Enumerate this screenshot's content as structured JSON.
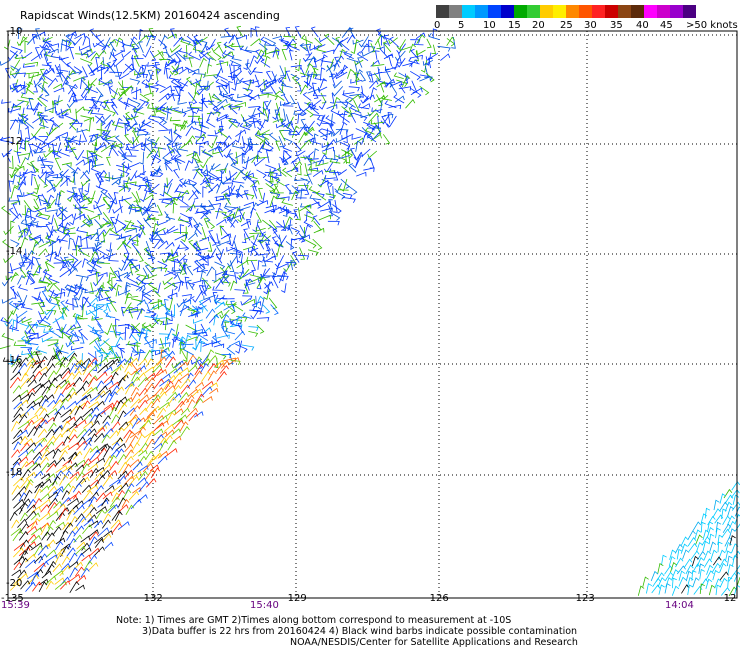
{
  "title": "Rapidscat Winds(12.5KM) 20160424 ascending",
  "colorbar": {
    "colors": [
      "#404040",
      "#808080",
      "#00ccff",
      "#0099ff",
      "#0044ff",
      "#0000cc",
      "#00aa00",
      "#33cc33",
      "#ffcc00",
      "#ffee00",
      "#ff8800",
      "#ff5500",
      "#ff2222",
      "#cc0000",
      "#8b4513",
      "#5c2a0a",
      "#ff00ff",
      "#cc00cc",
      "#9900cc",
      "#4b0082"
    ],
    "labels": [
      "0",
      "5",
      "10",
      "15",
      "20",
      "25",
      "30",
      "35",
      "40",
      "45",
      ">50 knots"
    ]
  },
  "map": {
    "lat_labels": [
      "-10",
      "-12",
      "-14",
      "-16",
      "-18",
      "-20"
    ],
    "lon_labels": [
      "-135",
      "-132",
      "-129",
      "-126",
      "-123",
      "-12"
    ],
    "time_labels": [
      "15:39",
      "15:40",
      "14:04"
    ]
  },
  "notes": {
    "line1": "Note: 1) Times are GMT 2)Times along bottom correspond to measurement at -10S",
    "line2": "3)Data buffer is 22 hrs from 20160424 4) Black wind barbs indicate possible contamination",
    "line3": "NOAA/NESDIS/Center for Satellite Applications and Research"
  }
}
